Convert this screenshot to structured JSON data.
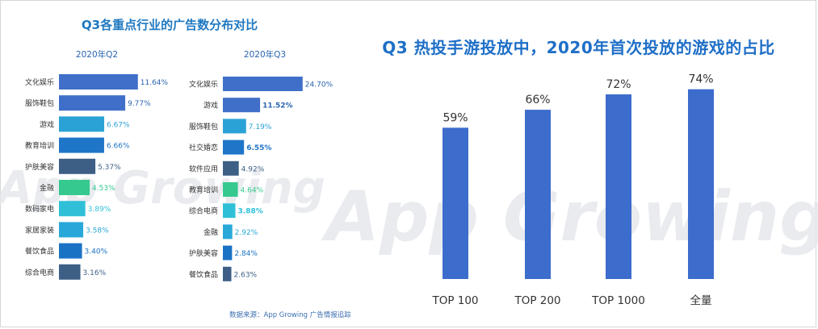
{
  "left_title": "Q3各重点行业的广告数分布对比",
  "right_title": "Q3 热投手游投放中，2020年首次投放的游戏的占比",
  "source": "数据来源：App Growing 广告情报追踪",
  "watermark": "App Growing",
  "chart_data": [
    {
      "type": "bar",
      "orientation": "horizontal",
      "title": "2020年Q2",
      "unit": "%",
      "categories": [
        "文化娱乐",
        "服饰鞋包",
        "游戏",
        "教育培训",
        "护肤美容",
        "金融",
        "数码家电",
        "家居家装",
        "餐饮食品",
        "综合电商"
      ],
      "values": [
        11.64,
        9.77,
        6.67,
        6.66,
        5.37,
        4.53,
        3.89,
        3.58,
        3.4,
        3.16
      ],
      "labels": [
        "11.64%",
        "9.77%",
        "6.67%",
        "6.66%",
        "5.37%",
        "4.53%",
        "3.89%",
        "3.58%",
        "3.40%",
        "3.16%"
      ],
      "colors": [
        "#3f6fc8",
        "#3f6fc8",
        "#2aa2d6",
        "#1f75c8",
        "#3d5f86",
        "#36c98f",
        "#2fc0d8",
        "#28a8d8",
        "#1a72c4",
        "#3d5f86"
      ],
      "label_colors": [
        "#2a64b0",
        "#2a64b0",
        "#2aa2d6",
        "#1f75c8",
        "#3d5f86",
        "#36c98f",
        "#2fc0d8",
        "#28a8d8",
        "#1a72c4",
        "#3d5f86"
      ]
    },
    {
      "type": "bar",
      "orientation": "horizontal",
      "title": "2020年Q3",
      "unit": "%",
      "categories": [
        "文化娱乐",
        "游戏",
        "服饰鞋包",
        "社交婚恋",
        "软件应用",
        "教育培训",
        "综合电商",
        "金融",
        "护肤美容",
        "餐饮食品"
      ],
      "values": [
        24.7,
        11.52,
        7.19,
        6.55,
        4.92,
        4.64,
        3.88,
        2.92,
        2.84,
        2.63
      ],
      "labels": [
        "24.70%",
        "11.52%",
        "7.19%",
        "6.55%",
        "4.92%",
        "4.64%",
        "3.88%",
        "2.92%",
        "2.84%",
        "2.63%"
      ],
      "bold": [
        false,
        true,
        false,
        true,
        false,
        false,
        true,
        false,
        false,
        false
      ],
      "colors": [
        "#3f6fc8",
        "#3f6fc8",
        "#2aa2d6",
        "#1f75c8",
        "#3d5f86",
        "#36c98f",
        "#2fc0d8",
        "#28a8d8",
        "#1a72c4",
        "#3d5f86"
      ],
      "label_colors": [
        "#2a64b0",
        "#2a64b0",
        "#2aa2d6",
        "#1f75c8",
        "#3d5f86",
        "#36c98f",
        "#2fc0d8",
        "#28a8d8",
        "#1a72c4",
        "#3d5f86"
      ]
    },
    {
      "type": "bar",
      "orientation": "vertical",
      "title": "Q3 热投手游投放中，2020年首次投放的游戏的占比",
      "unit": "%",
      "categories": [
        "TOP 100",
        "TOP 200",
        "TOP 1000",
        "全量"
      ],
      "values": [
        59,
        66,
        72,
        74
      ],
      "labels": [
        "59%",
        "66%",
        "72%",
        "74%"
      ],
      "ylim": [
        0,
        100
      ],
      "color": "#3c6ccc"
    }
  ]
}
